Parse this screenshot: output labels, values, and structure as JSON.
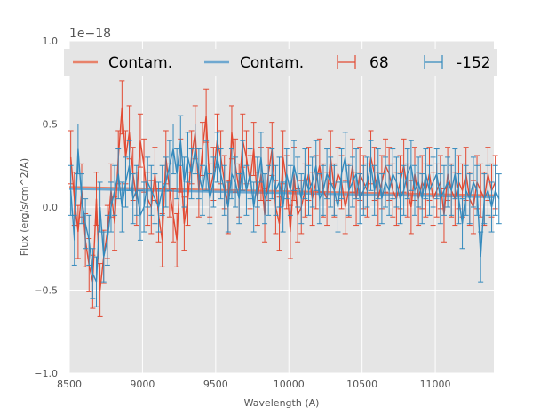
{
  "chart_data": {
    "type": "line",
    "title": "",
    "xlabel": "Wavelength (A)",
    "ylabel": "Flux (erg/s/cm^2/A)",
    "xlim": [
      8500,
      11400
    ],
    "ylim": [
      -1.0,
      1.0
    ],
    "y_offset_label": "1e−18",
    "x_ticks": [
      8500,
      9000,
      9500,
      10000,
      10500,
      11000
    ],
    "x_tick_labels": [
      "8500",
      "9000",
      "9500",
      "10000",
      "10500",
      "11000"
    ],
    "y_ticks": [
      -1.0,
      -0.5,
      0.0,
      0.5,
      1.0
    ],
    "y_tick_labels": [
      "−1.0",
      "−0.5",
      "0.0",
      "0.5",
      "1.0"
    ],
    "grid": true,
    "legend_placement": "top",
    "legend": [
      {
        "label": "Contam.",
        "kind": "line",
        "color": "#e8826a"
      },
      {
        "label": "Contam.",
        "kind": "line",
        "color": "#6fa8d0"
      },
      {
        "label": "68",
        "kind": "errorbar",
        "color": "#e24a33"
      },
      {
        "label": "-152",
        "kind": "errorbar",
        "color": "#348abd"
      }
    ],
    "contam_lines": [
      {
        "color": "#e8826a",
        "x": [
          8500,
          11400
        ],
        "y": [
          0.12,
          0.07
        ]
      },
      {
        "color": "#6fa8d0",
        "x": [
          8500,
          11400
        ],
        "y": [
          0.11,
          0.06
        ]
      }
    ],
    "series": [
      {
        "label": "68",
        "color": "#e24a33",
        "x_start": 8510,
        "x_step": 25,
        "y": [
          0.3,
          0.05,
          -0.15,
          0.1,
          -0.2,
          -0.35,
          -0.45,
          0.05,
          -0.5,
          -0.3,
          -0.15,
          0.1,
          -0.1,
          0.3,
          0.6,
          0.3,
          0.45,
          0.2,
          0.05,
          0.4,
          0.25,
          0.05,
          0.0,
          0.2,
          -0.05,
          -0.2,
          0.3,
          0.1,
          -0.05,
          -0.2,
          0.25,
          -0.1,
          0.05,
          0.3,
          0.45,
          0.1,
          0.35,
          0.55,
          0.1,
          0.2,
          0.4,
          0.3,
          0.15,
          0.0,
          0.45,
          0.25,
          0.1,
          0.4,
          0.3,
          0.15,
          0.35,
          0.05,
          0.2,
          -0.05,
          0.2,
          0.35,
          0.0,
          -0.1,
          0.3,
          0.15,
          -0.15,
          0.2,
          -0.05,
          0.0,
          0.1,
          0.2,
          0.05,
          0.15,
          0.25,
          0.1,
          0.05,
          0.3,
          0.1,
          0.2,
          0.15,
          0.0,
          0.1,
          0.25,
          0.05,
          0.2,
          0.15,
          0.1,
          0.3,
          0.2,
          0.05,
          0.15,
          0.25,
          0.2,
          0.1,
          0.05,
          0.15,
          0.25,
          0.1,
          0.0,
          0.2,
          0.05,
          0.15,
          0.1,
          0.2,
          0.05,
          0.1,
          0.15,
          -0.05,
          0.2,
          0.1,
          0.05,
          0.15,
          0.1,
          0.2,
          0.05,
          0.0,
          0.15,
          0.1,
          0.05,
          0.2,
          0.1,
          0.15
        ],
        "err": 0.16
      },
      {
        "label": "-152",
        "color": "#348abd",
        "x_start": 8510,
        "x_step": 25,
        "y": [
          0.1,
          -0.2,
          0.35,
          0.05,
          -0.1,
          -0.2,
          -0.4,
          -0.45,
          0.0,
          -0.3,
          -0.2,
          0.0,
          0.1,
          0.2,
          0.0,
          0.15,
          0.25,
          0.05,
          0.1,
          -0.05,
          0.0,
          0.15,
          0.1,
          0.05,
          0.0,
          0.1,
          0.15,
          0.25,
          0.35,
          0.2,
          0.4,
          0.15,
          0.3,
          0.2,
          0.35,
          0.2,
          0.1,
          0.25,
          0.05,
          0.15,
          0.3,
          0.2,
          0.1,
          0.0,
          0.2,
          0.15,
          0.05,
          0.25,
          0.1,
          0.2,
          0.0,
          0.15,
          0.3,
          0.05,
          0.1,
          0.2,
          0.1,
          0.15,
          0.0,
          0.2,
          0.1,
          0.25,
          0.15,
          0.05,
          0.2,
          0.1,
          0.15,
          0.25,
          0.05,
          0.1,
          0.2,
          0.15,
          0.1,
          0.0,
          0.2,
          0.3,
          0.1,
          0.15,
          0.2,
          0.05,
          0.1,
          0.15,
          0.25,
          0.1,
          0.2,
          0.05,
          0.15,
          0.1,
          0.2,
          0.15,
          0.05,
          0.1,
          0.2,
          0.25,
          0.1,
          0.15,
          0.05,
          0.2,
          0.1,
          0.15,
          0.2,
          0.05,
          0.1,
          0.15,
          0.1,
          0.2,
          0.05,
          -0.1,
          0.1,
          0.05,
          0.15,
          0.1,
          -0.3,
          0.05,
          0.1,
          0.0,
          0.1,
          0.05
        ],
        "err": 0.15
      }
    ]
  }
}
